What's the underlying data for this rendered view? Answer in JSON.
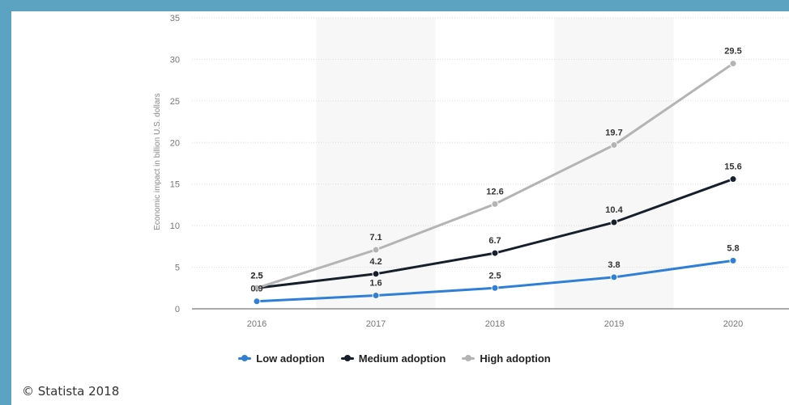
{
  "chart_data": {
    "type": "line",
    "x": [
      "2016",
      "2017",
      "2018",
      "2019",
      "2020"
    ],
    "ylabel": "Economic impact in billion U.S. dollars",
    "ylim": [
      0,
      35
    ],
    "yticks": [
      "0",
      "5",
      "10",
      "15",
      "20",
      "25",
      "30",
      "35"
    ],
    "grid": true,
    "legend_position": "bottom",
    "series": [
      {
        "name": "Low adoption",
        "color": "#2f7ed8",
        "values": [
          0.9,
          1.6,
          2.5,
          3.8,
          5.8
        ]
      },
      {
        "name": "Medium adoption",
        "color": "#17202a",
        "values": [
          2.5,
          4.2,
          6.7,
          10.4,
          15.6
        ]
      },
      {
        "name": "High adoption",
        "color": "#b4b4b4",
        "values": [
          2.5,
          7.1,
          12.6,
          19.7,
          29.5
        ]
      }
    ]
  },
  "footer": {
    "copyright": "© Statista 2018"
  },
  "colors": {
    "frame": "#5ba3c0",
    "grid": "#dcdcdc",
    "band": "#f7f7f7"
  }
}
